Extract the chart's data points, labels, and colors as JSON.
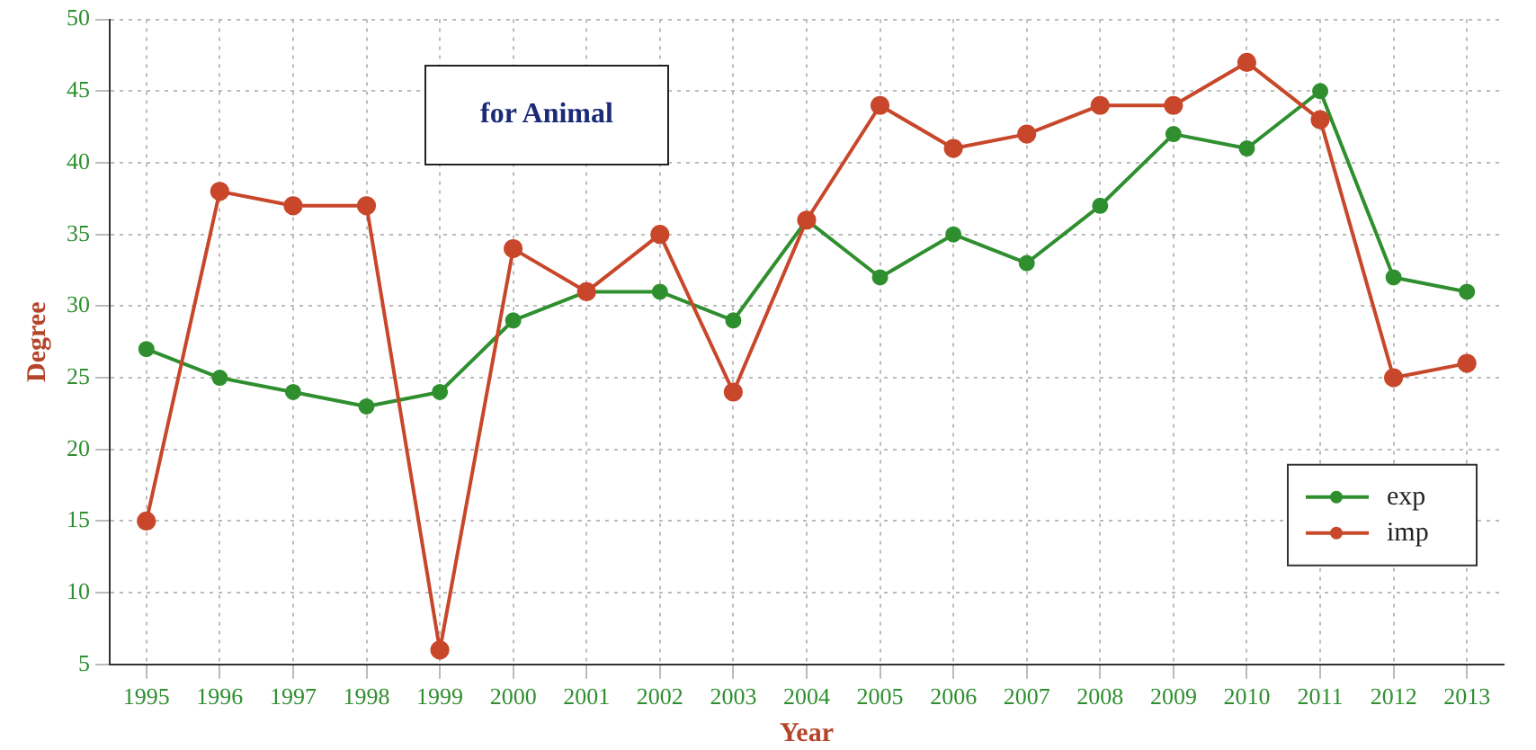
{
  "chart_data": {
    "type": "line",
    "title": "for Animal",
    "xlabel": "Year",
    "ylabel": "Degree",
    "categories": [
      "1995",
      "1996",
      "1997",
      "1998",
      "1999",
      "2000",
      "2001",
      "2002",
      "2003",
      "2004",
      "2005",
      "2006",
      "2007",
      "2008",
      "2009",
      "2010",
      "2011",
      "2012",
      "2013"
    ],
    "series": [
      {
        "name": "exp",
        "color": "#2f8f2f",
        "values": [
          27,
          25,
          24,
          23,
          24,
          29,
          31,
          31,
          29,
          36,
          32,
          35,
          33,
          37,
          42,
          41,
          45,
          32,
          31
        ]
      },
      {
        "name": "imp",
        "color": "#c8472a",
        "values": [
          15,
          38,
          37,
          37,
          6,
          34,
          31,
          35,
          24,
          36,
          44,
          41,
          42,
          44,
          44,
          47,
          43,
          25,
          26
        ]
      }
    ],
    "ylim": [
      5,
      50
    ],
    "yticks": [
      5,
      10,
      15,
      20,
      25,
      30,
      35,
      40,
      45,
      50
    ],
    "grid": true,
    "legend": "bottom right",
    "marker": "circle",
    "line_style": "solid"
  }
}
